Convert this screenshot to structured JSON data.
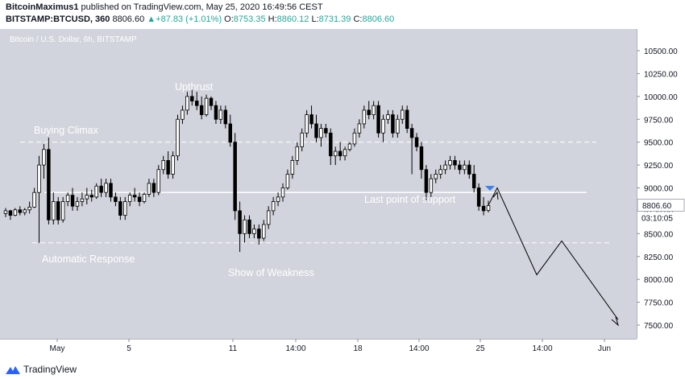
{
  "header": {
    "publisher": "BitcoinMaximus1",
    "published_text": "published on TradingView.com, May 25, 2020 16:49:56 CEST",
    "symbol": "BITSTAMP:BTCUSD, 360",
    "last": "8806.60",
    "change_arrow": "▲",
    "change": "+87.83 (+1.01%)",
    "open_label": "O:",
    "open": "8753.35",
    "high_label": "H:",
    "high": "8860.12",
    "low_label": "L:",
    "low": "8731.39",
    "close_label": "C:",
    "close": "8806.60"
  },
  "chart": {
    "watermark": "Bitcoin / U.S. Dollar, 6h, BITSTAMP",
    "price_badge": "8806.60",
    "countdown": "03:10:05",
    "annotations": {
      "upthrust": "Upthrust",
      "buying_climax": "Buying Climax",
      "last_point_of_support": "Last point of support",
      "automatic_response": "Automatic Response",
      "show_of_weakness": "Show of Weakness"
    }
  },
  "footer": {
    "brand": "TradingView",
    "logo_icon": "tradingview-logo-icon"
  },
  "colors": {
    "background": "#d1d4dc",
    "candle_up": "#ffffff",
    "candle_down": "#000000",
    "annotation_text": "#ffffff",
    "marker": "#3d82e6",
    "price_badge": "#ffffff"
  },
  "chart_data": {
    "type": "candlestick",
    "title": "Bitcoin / U.S. Dollar, 6h, BITSTAMP",
    "x_tick_labels": [
      "May",
      "5",
      "11",
      "14:00",
      "18",
      "14:00",
      "25",
      "14:00",
      "Jun"
    ],
    "y_tick_labels": [
      "10500.00",
      "10250.00",
      "10000.00",
      "9750.00",
      "9500.00",
      "9250.00",
      "9000.00",
      "8750.00",
      "8500.00",
      "8250.00",
      "8000.00",
      "7750.00",
      "7500.00"
    ],
    "ylim": [
      7400,
      10700
    ],
    "ohlc": [
      [
        8720,
        8780,
        8680,
        8750
      ],
      [
        8750,
        8760,
        8650,
        8700
      ],
      [
        8700,
        8780,
        8690,
        8760
      ],
      [
        8760,
        8800,
        8700,
        8730
      ],
      [
        8730,
        8780,
        8700,
        8760
      ],
      [
        8760,
        8850,
        8720,
        8790
      ],
      [
        8790,
        9000,
        8780,
        8950
      ],
      [
        8950,
        9350,
        8400,
        9250
      ],
      [
        9250,
        9480,
        9100,
        9420
      ],
      [
        9420,
        9550,
        8600,
        8650
      ],
      [
        8650,
        8950,
        8600,
        8850
      ],
      [
        8850,
        8900,
        8600,
        8650
      ],
      [
        8650,
        8900,
        8620,
        8850
      ],
      [
        8850,
        8950,
        8800,
        8920
      ],
      [
        8920,
        9000,
        8750,
        8800
      ],
      [
        8800,
        8900,
        8750,
        8850
      ],
      [
        8850,
        8950,
        8800,
        8880
      ],
      [
        8880,
        9000,
        8820,
        8920
      ],
      [
        8920,
        8980,
        8850,
        8900
      ],
      [
        8900,
        9050,
        8880,
        9020
      ],
      [
        9020,
        9100,
        8900,
        8950
      ],
      [
        8950,
        9100,
        8900,
        9050
      ],
      [
        9050,
        9100,
        8850,
        8900
      ],
      [
        8900,
        8950,
        8800,
        8850
      ],
      [
        8850,
        8900,
        8650,
        8700
      ],
      [
        8700,
        8900,
        8650,
        8850
      ],
      [
        8850,
        8950,
        8800,
        8920
      ],
      [
        8920,
        9000,
        8850,
        8900
      ],
      [
        8900,
        8950,
        8800,
        8850
      ],
      [
        8850,
        8950,
        8830,
        8930
      ],
      [
        8930,
        9100,
        8900,
        9050
      ],
      [
        9050,
        9100,
        8900,
        8950
      ],
      [
        8950,
        9250,
        8920,
        9200
      ],
      [
        9200,
        9350,
        9150,
        9300
      ],
      [
        9300,
        9400,
        9100,
        9150
      ],
      [
        9150,
        9400,
        9100,
        9350
      ],
      [
        9350,
        9800,
        9300,
        9750
      ],
      [
        9750,
        9900,
        9700,
        9850
      ],
      [
        9850,
        10050,
        9800,
        10000
      ],
      [
        10000,
        10080,
        9900,
        9950
      ],
      [
        9950,
        10050,
        9850,
        9900
      ],
      [
        9900,
        10000,
        9750,
        9800
      ],
      [
        9800,
        10020,
        9780,
        9980
      ],
      [
        9980,
        10000,
        9850,
        9900
      ],
      [
        9900,
        9950,
        9700,
        9750
      ],
      [
        9750,
        9900,
        9700,
        9850
      ],
      [
        9850,
        9900,
        9650,
        9700
      ],
      [
        9700,
        9800,
        9450,
        9500
      ],
      [
        9500,
        9600,
        8650,
        8750
      ],
      [
        8750,
        8850,
        8300,
        8500
      ],
      [
        8500,
        8700,
        8400,
        8650
      ],
      [
        8650,
        8700,
        8450,
        8500
      ],
      [
        8500,
        8600,
        8450,
        8550
      ],
      [
        8550,
        8600,
        8380,
        8450
      ],
      [
        8450,
        8650,
        8420,
        8600
      ],
      [
        8600,
        8800,
        8550,
        8750
      ],
      [
        8750,
        8900,
        8700,
        8850
      ],
      [
        8850,
        8950,
        8800,
        8900
      ],
      [
        8900,
        9050,
        8850,
        9000
      ],
      [
        9000,
        9200,
        8980,
        9150
      ],
      [
        9150,
        9350,
        9100,
        9300
      ],
      [
        9300,
        9500,
        9250,
        9450
      ],
      [
        9450,
        9650,
        9400,
        9600
      ],
      [
        9600,
        9850,
        9550,
        9800
      ],
      [
        9800,
        9900,
        9650,
        9700
      ],
      [
        9700,
        9800,
        9500,
        9550
      ],
      [
        9550,
        9700,
        9450,
        9650
      ],
      [
        9650,
        9700,
        9550,
        9600
      ],
      [
        9600,
        9650,
        9250,
        9350
      ],
      [
        9350,
        9450,
        9250,
        9400
      ],
      [
        9400,
        9500,
        9300,
        9350
      ],
      [
        9350,
        9450,
        9300,
        9420
      ],
      [
        9420,
        9500,
        9400,
        9480
      ],
      [
        9480,
        9650,
        9450,
        9600
      ],
      [
        9600,
        9750,
        9550,
        9700
      ],
      [
        9700,
        9900,
        9650,
        9850
      ],
      [
        9850,
        9950,
        9750,
        9800
      ],
      [
        9800,
        9950,
        9750,
        9900
      ],
      [
        9900,
        9950,
        9550,
        9600
      ],
      [
        9600,
        9800,
        9500,
        9750
      ],
      [
        9750,
        9850,
        9700,
        9800
      ],
      [
        9800,
        9850,
        9550,
        9600
      ],
      [
        9600,
        9800,
        9550,
        9750
      ],
      [
        9750,
        9900,
        9700,
        9850
      ],
      [
        9850,
        9900,
        9600,
        9650
      ],
      [
        9650,
        9700,
        9150,
        9550
      ],
      [
        9550,
        9600,
        9400,
        9450
      ],
      [
        9450,
        9500,
        9100,
        9200
      ],
      [
        9200,
        9250,
        8850,
        8950
      ],
      [
        8950,
        9150,
        8900,
        9100
      ],
      [
        9100,
        9200,
        9050,
        9150
      ],
      [
        9150,
        9250,
        9100,
        9200
      ],
      [
        9200,
        9300,
        9150,
        9250
      ],
      [
        9250,
        9350,
        9200,
        9300
      ],
      [
        9300,
        9350,
        9200,
        9250
      ],
      [
        9250,
        9300,
        9150,
        9200
      ],
      [
        9200,
        9300,
        9150,
        9250
      ],
      [
        9250,
        9300,
        9100,
        9150
      ],
      [
        9150,
        9250,
        8950,
        9000
      ],
      [
        9000,
        9050,
        8750,
        8800
      ],
      [
        8800,
        8900,
        8700,
        8750
      ],
      [
        8753.35,
        8860.12,
        8731.39,
        8806.6
      ]
    ],
    "projection": [
      9000,
      8050,
      8420,
      7560
    ]
  }
}
